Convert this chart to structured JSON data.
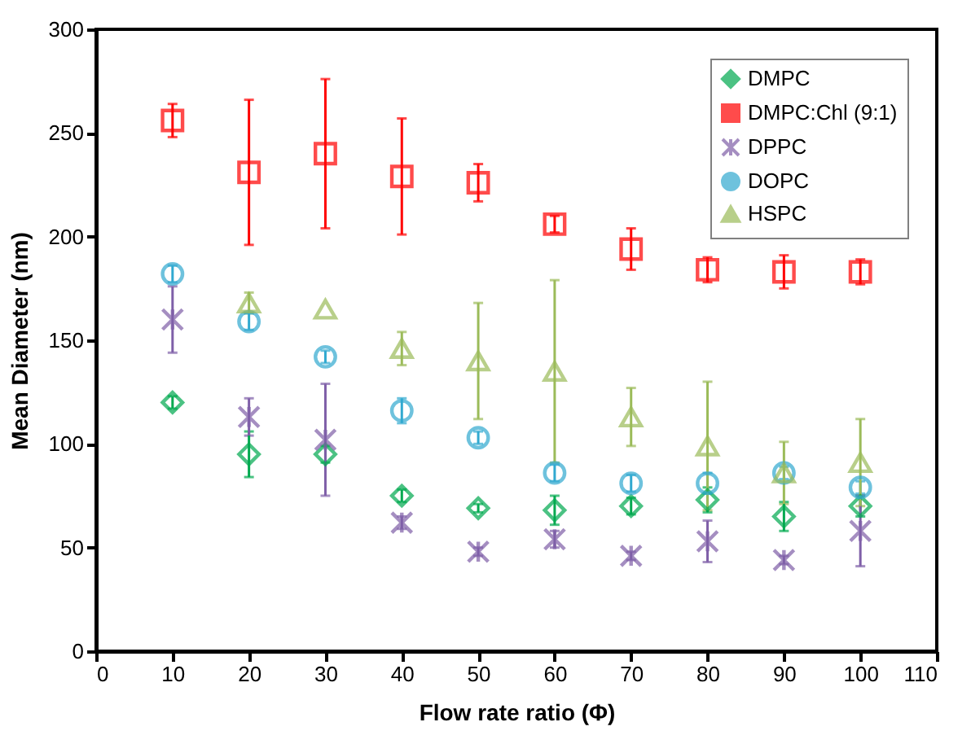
{
  "chart_data": {
    "type": "scatter",
    "xlabel": "Flow rate ratio (Φ)",
    "ylabel": "Mean Diameter (nm)",
    "x": [
      10,
      20,
      30,
      40,
      50,
      60,
      70,
      80,
      90,
      100
    ],
    "xlim": [
      0,
      110
    ],
    "xticks": [
      0,
      10,
      20,
      30,
      40,
      50,
      60,
      70,
      80,
      90,
      100,
      110
    ],
    "ylim": [
      0,
      300
    ],
    "yticks": [
      0,
      50,
      100,
      150,
      200,
      250,
      300
    ],
    "grid": false,
    "legend": "top right",
    "series": [
      {
        "name": "DMPC",
        "color": "#00a94f",
        "marker": "diamond",
        "values": [
          120,
          95,
          95,
          75,
          69,
          68,
          70,
          73,
          65,
          70
        ],
        "errors": [
          3,
          11,
          4,
          3,
          2,
          7,
          4,
          6,
          7,
          5
        ]
      },
      {
        "name": "DMPC:Chl (9:1)",
        "color": "#ff0000",
        "marker": "square",
        "values": [
          256,
          231,
          240,
          229,
          226,
          206,
          194,
          184,
          183,
          183
        ],
        "errors": [
          8,
          35,
          36,
          28,
          9,
          4,
          10,
          6,
          8,
          6
        ]
      },
      {
        "name": "DPPC",
        "color": "#7f5fa8",
        "marker": "cross",
        "values": [
          160,
          113,
          102,
          62,
          48,
          54,
          46,
          53,
          44,
          58
        ],
        "errors": [
          16,
          9,
          27,
          3,
          2,
          4,
          2,
          10,
          2,
          17
        ]
      },
      {
        "name": "DOPC",
        "color": "#31a9d0",
        "marker": "circle",
        "values": [
          182,
          159,
          142,
          116,
          103,
          86,
          81,
          81,
          86,
          79
        ],
        "errors": [
          4,
          4,
          3,
          6,
          3,
          4,
          4,
          5,
          3,
          3
        ]
      },
      {
        "name": "HSPC",
        "color": "#9bbb59",
        "marker": "triangle",
        "values": [
          null,
          168,
          165,
          146,
          140,
          135,
          113,
          99,
          86,
          91
        ],
        "errors": [
          null,
          5,
          null,
          8,
          28,
          44,
          14,
          31,
          15,
          21
        ]
      }
    ]
  }
}
